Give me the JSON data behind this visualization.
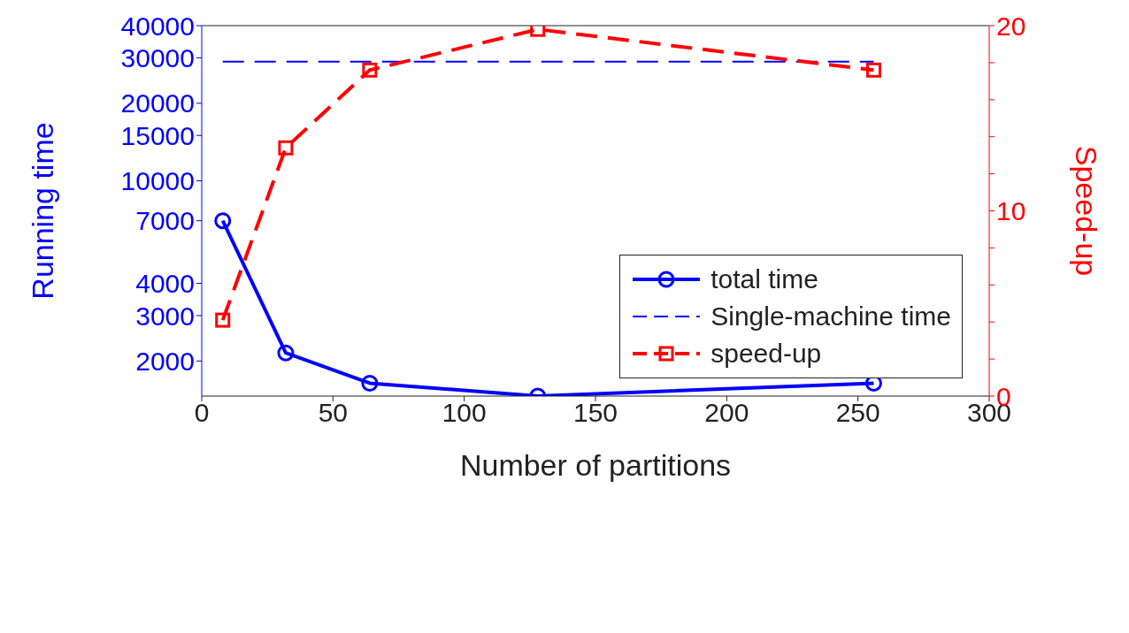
{
  "chart_data": {
    "type": "line",
    "xlabel": "Number of partitions",
    "ylabel": "Running time",
    "y2label": "Speed-up",
    "x": [
      8,
      32,
      64,
      128,
      256
    ],
    "series": [
      {
        "name": "total time",
        "color": "#0000ff",
        "values": [
          7000,
          2150,
          1640,
          1462,
          1640
        ],
        "marker": "circle",
        "line_style": "solid"
      },
      {
        "name": "Single-machine time",
        "color": "#0000ff",
        "x": [
          8,
          256
        ],
        "values": [
          29000,
          29000
        ],
        "marker": "none",
        "line_style": "dashed"
      },
      {
        "name": "speed-up",
        "color": "#ff0000",
        "values": [
          4.1,
          13.4,
          17.6,
          19.8,
          17.6
        ],
        "marker": "square",
        "line_style": "dashed",
        "axis": "y2"
      }
    ],
    "log": "y",
    "xlim": [
      0,
      300
    ],
    "xticks": [
      0,
      50,
      100,
      150,
      200,
      250,
      300
    ],
    "ylim": [
      1462,
      40000
    ],
    "yticks": [
      2000,
      3000,
      4000,
      7000,
      10000,
      15000,
      20000,
      30000,
      40000
    ],
    "y2lim": [
      0,
      20
    ],
    "y2ticks": [
      0,
      {
        "value": 2,
        "label": null
      },
      {
        "value": 4,
        "label": null
      },
      {
        "value": 6,
        "label": null
      },
      {
        "value": 8,
        "label": null
      },
      10,
      {
        "value": 12,
        "label": null
      },
      {
        "value": 14,
        "label": null
      },
      {
        "value": 16,
        "label": null
      },
      {
        "value": 18,
        "label": null
      },
      20
    ],
    "legend": "right"
  }
}
